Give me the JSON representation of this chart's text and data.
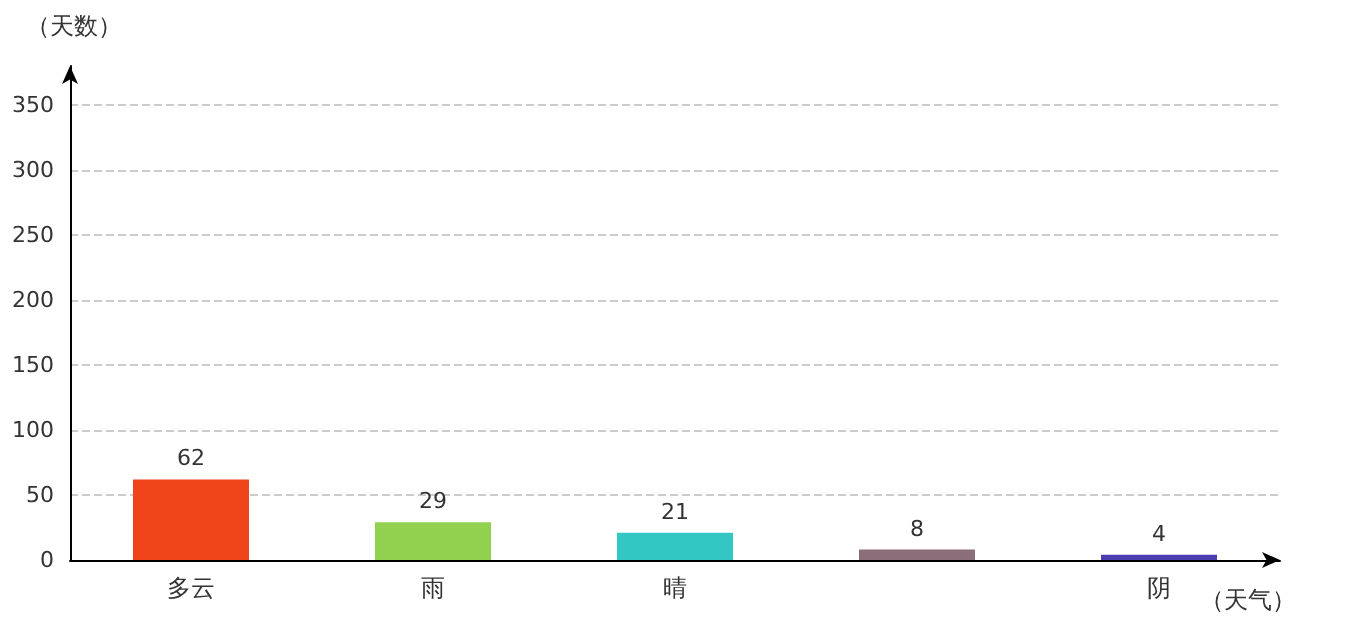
{
  "chart_data": {
    "type": "bar",
    "xlabel": "（天气）",
    "ylabel": "（天数）",
    "categories": [
      "多云",
      "雨",
      "晴",
      null,
      "阴"
    ],
    "values": [
      62,
      29,
      21,
      8,
      4
    ],
    "colors": [
      "#f0441b",
      "#92d050",
      "#33c7c4",
      "#8c6d7a",
      "#4b3cb0"
    ],
    "ylim": [
      0,
      380
    ],
    "yticks": [
      0,
      50,
      100,
      150,
      200,
      250,
      300,
      350
    ],
    "grid": "y",
    "data_labels": true
  }
}
